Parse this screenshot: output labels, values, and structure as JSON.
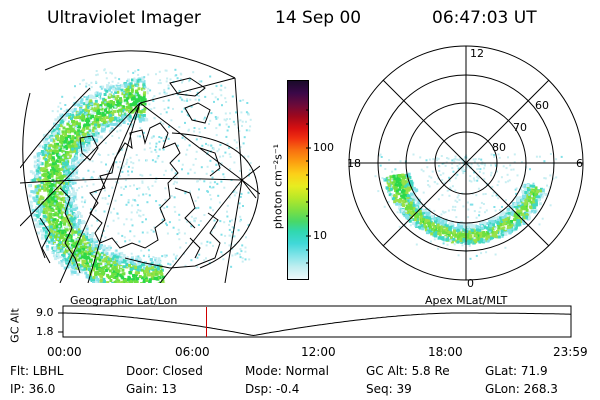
{
  "header": {
    "instrument": "Ultraviolet Imager",
    "date": "14 Sep 00",
    "time": "06:47:03 UT"
  },
  "colorbar": {
    "unit_label": "photon cm⁻²s⁻¹",
    "ticks": [
      "100",
      "10"
    ],
    "colors": [
      "#1a0a2a",
      "#3a0848",
      "#6a0a3a",
      "#a0081c",
      "#d81010",
      "#f03010",
      "#f87010",
      "#fca010",
      "#fcd018",
      "#e8ec20",
      "#b8e828",
      "#80e040",
      "#48d868",
      "#30d8b0",
      "#40d8d8",
      "#80e4e8",
      "#c0eef0",
      "#eef8fa"
    ]
  },
  "left_panel": {
    "caption": "Geographic Lat/Lon"
  },
  "right_panel": {
    "caption": "Apex  MLat/MLT",
    "mlt_labels": {
      "top": "12",
      "left": "18",
      "right": "6",
      "bottom": "0"
    },
    "lat_labels": [
      "60",
      "70",
      "80"
    ]
  },
  "altitude_plot": {
    "ylabel": "GC Alt",
    "yticks": [
      "9.0",
      "1.8"
    ],
    "xticks": [
      "00:00",
      "06:00",
      "12:00",
      "18:00",
      "23:59"
    ],
    "marker_hour": 6.78,
    "marker_color": "#d00000"
  },
  "info": {
    "flt": "Flt: LBHL",
    "ip": "IP: 36.0",
    "door": "Door: Closed",
    "gain": "Gain: 13",
    "mode": "Mode: Normal",
    "dsp": "Dsp:    -0.4",
    "gcalt": "GC Alt: 5.8 Re",
    "seq": "Seq: 39",
    "glat": "GLat:   71.9",
    "glon": "GLon: 268.3"
  }
}
